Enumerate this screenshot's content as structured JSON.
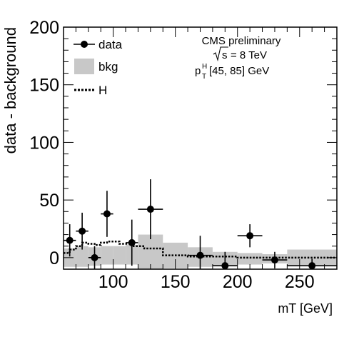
{
  "chart_data": {
    "type": "scatter",
    "title": "",
    "xlabel": "mT [GeV]",
    "ylabel": "data - background",
    "xlim": [
      60,
      280
    ],
    "ylim": [
      -10,
      200
    ],
    "x_ticks": [
      100,
      150,
      200,
      250
    ],
    "y_ticks": [
      0,
      50,
      100,
      150,
      200
    ],
    "grid": false,
    "legend_position": "top-left",
    "legend": {
      "data": "data",
      "bkg": "bkg",
      "H": "H"
    },
    "annotation": {
      "line1": "CMS preliminary",
      "sqrt": "s",
      "energy": "= 8 TeV",
      "pt_base": "p",
      "pt_sub": "T",
      "pt_sup": "H",
      "pt_range": "[45, 85] GeV"
    },
    "series": [
      {
        "name": "data",
        "style": "points-with-errors",
        "points": [
          {
            "x": 65,
            "xerr": 5,
            "y": 15,
            "yerr": 14
          },
          {
            "x": 75,
            "xerr": 5,
            "y": 23,
            "yerr": 16
          },
          {
            "x": 85,
            "xerr": 5,
            "y": 0,
            "yerr": 10
          },
          {
            "x": 95,
            "xerr": 5,
            "y": 38,
            "yerr": 20
          },
          {
            "x": 115,
            "xerr": 5,
            "y": 13,
            "yerr": 20
          },
          {
            "x": 130,
            "xerr": 10,
            "y": 42,
            "yerr": 26
          },
          {
            "x": 170,
            "xerr": 10,
            "y": 2,
            "yerr": 17
          },
          {
            "x": 190,
            "xerr": 10,
            "y": -7,
            "yerr": 12
          },
          {
            "x": 210,
            "xerr": 10,
            "y": 19,
            "yerr": 10
          },
          {
            "x": 230,
            "xerr": 10,
            "y": -2,
            "yerr": 7
          },
          {
            "x": 260,
            "xerr": 20,
            "y": -7,
            "yerr": 6
          }
        ]
      },
      {
        "name": "bkg",
        "style": "uncertainty-band",
        "color": "#c8c8c8",
        "bins": [
          {
            "x0": 60,
            "x1": 70,
            "lo": -8,
            "hi": 8
          },
          {
            "x0": 70,
            "x1": 80,
            "lo": -8,
            "hi": 10
          },
          {
            "x0": 80,
            "x1": 90,
            "lo": -7,
            "hi": 9
          },
          {
            "x0": 90,
            "x1": 100,
            "lo": -6,
            "hi": 10
          },
          {
            "x0": 100,
            "x1": 110,
            "lo": -6,
            "hi": 10
          },
          {
            "x0": 110,
            "x1": 120,
            "lo": -6,
            "hi": 11
          },
          {
            "x0": 120,
            "x1": 140,
            "lo": -10,
            "hi": 20
          },
          {
            "x0": 140,
            "x1": 160,
            "lo": -9,
            "hi": 13
          },
          {
            "x0": 160,
            "x1": 180,
            "lo": -8,
            "hi": 9
          },
          {
            "x0": 180,
            "x1": 200,
            "lo": -7,
            "hi": 5
          },
          {
            "x0": 200,
            "x1": 220,
            "lo": -6,
            "hi": 4
          },
          {
            "x0": 220,
            "x1": 240,
            "lo": -5,
            "hi": 3
          },
          {
            "x0": 240,
            "x1": 280,
            "lo": -7,
            "hi": 7
          }
        ]
      },
      {
        "name": "H",
        "style": "dotted-step",
        "color": "#000000",
        "bins": [
          {
            "x0": 60,
            "x1": 65,
            "y": 4
          },
          {
            "x0": 65,
            "x1": 70,
            "y": 7
          },
          {
            "x0": 70,
            "x1": 75,
            "y": 10
          },
          {
            "x0": 75,
            "x1": 80,
            "y": 13
          },
          {
            "x0": 80,
            "x1": 85,
            "y": 12
          },
          {
            "x0": 85,
            "x1": 90,
            "y": 11
          },
          {
            "x0": 90,
            "x1": 95,
            "y": 13
          },
          {
            "x0": 95,
            "x1": 105,
            "y": 14
          },
          {
            "x0": 105,
            "x1": 115,
            "y": 12
          },
          {
            "x0": 115,
            "x1": 125,
            "y": 10
          },
          {
            "x0": 125,
            "x1": 140,
            "y": 8
          },
          {
            "x0": 140,
            "x1": 160,
            "y": 2
          },
          {
            "x0": 160,
            "x1": 200,
            "y": 1
          },
          {
            "x0": 200,
            "x1": 280,
            "y": 0
          }
        ]
      }
    ]
  }
}
